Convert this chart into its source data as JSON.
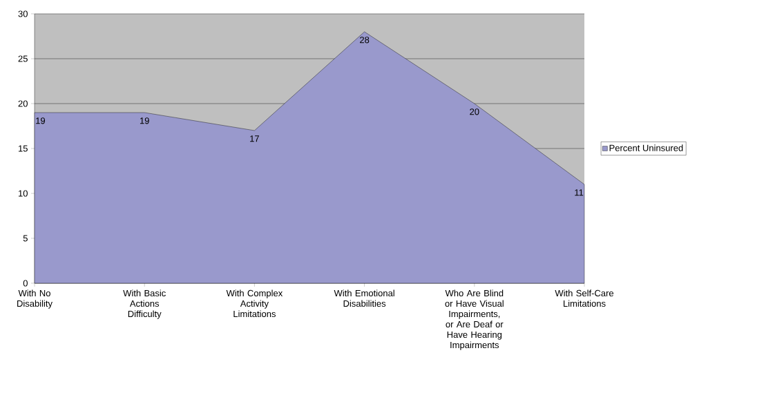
{
  "chart_data": {
    "type": "area",
    "categories": [
      "With No Disability",
      "With Basic Actions Difficulty",
      "With Complex Activity Limitations",
      "With Emotional Disabilities",
      "Who Are Blind or Have Visual Impairments, or Are Deaf or Have Hearing Impairments",
      "With Self-Care Limitations"
    ],
    "series": [
      {
        "name": "Percent Uninsured",
        "color": "#9999cc",
        "values": [
          19,
          19,
          17,
          28,
          20,
          11
        ]
      }
    ],
    "ylim": [
      0,
      30
    ],
    "yticks": [
      0,
      5,
      10,
      15,
      20,
      25,
      30
    ],
    "grid": "y",
    "legend": "right",
    "data_labels": true
  }
}
